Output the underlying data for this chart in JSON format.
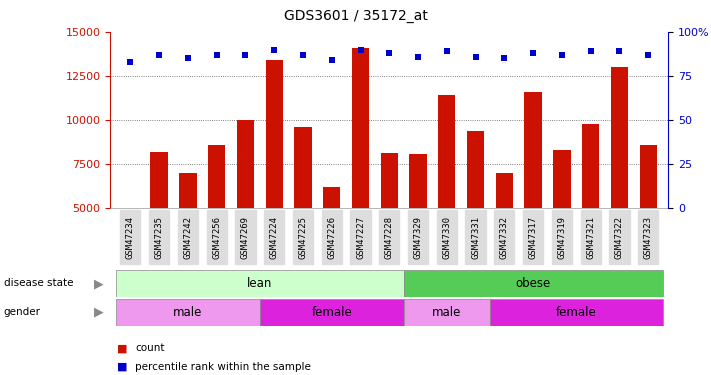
{
  "title": "GDS3601 / 35172_at",
  "samples": [
    "GSM47234",
    "GSM47235",
    "GSM47242",
    "GSM47256",
    "GSM47269",
    "GSM47224",
    "GSM47225",
    "GSM47226",
    "GSM47227",
    "GSM47228",
    "GSM47329",
    "GSM47330",
    "GSM47331",
    "GSM47332",
    "GSM47317",
    "GSM47319",
    "GSM47321",
    "GSM47322",
    "GSM47323"
  ],
  "counts": [
    5000,
    8200,
    7000,
    8600,
    10000,
    13400,
    9600,
    6200,
    14100,
    8100,
    8050,
    11400,
    9400,
    7000,
    11600,
    8300,
    9800,
    13000,
    8600
  ],
  "percentile": [
    83,
    87,
    85,
    87,
    87,
    90,
    87,
    84,
    90,
    88,
    86,
    89,
    86,
    85,
    88,
    87,
    89,
    89,
    87
  ],
  "disease_state": [
    {
      "label": "lean",
      "start": 0,
      "end": 10,
      "color": "#ccffcc"
    },
    {
      "label": "obese",
      "start": 10,
      "end": 19,
      "color": "#55cc55"
    }
  ],
  "gender": [
    {
      "label": "male",
      "start": 0,
      "end": 5,
      "color": "#ee99ee"
    },
    {
      "label": "female",
      "start": 5,
      "end": 10,
      "color": "#dd22dd"
    },
    {
      "label": "male",
      "start": 10,
      "end": 13,
      "color": "#ee99ee"
    },
    {
      "label": "female",
      "start": 13,
      "end": 19,
      "color": "#dd22dd"
    }
  ],
  "bar_color": "#cc1100",
  "scatter_color": "#0000cc",
  "ylim_left": [
    5000,
    15000
  ],
  "ylim_right": [
    0,
    100
  ],
  "yticks_left": [
    5000,
    7500,
    10000,
    12500,
    15000
  ],
  "yticks_right": [
    0,
    25,
    50,
    75,
    100
  ],
  "grid_dotted_at": [
    7500,
    10000,
    12500
  ],
  "legend_items": [
    "count",
    "percentile rank within the sample"
  ],
  "legend_colors": [
    "#cc1100",
    "#0000cc"
  ],
  "xtick_bg": "#dddddd"
}
